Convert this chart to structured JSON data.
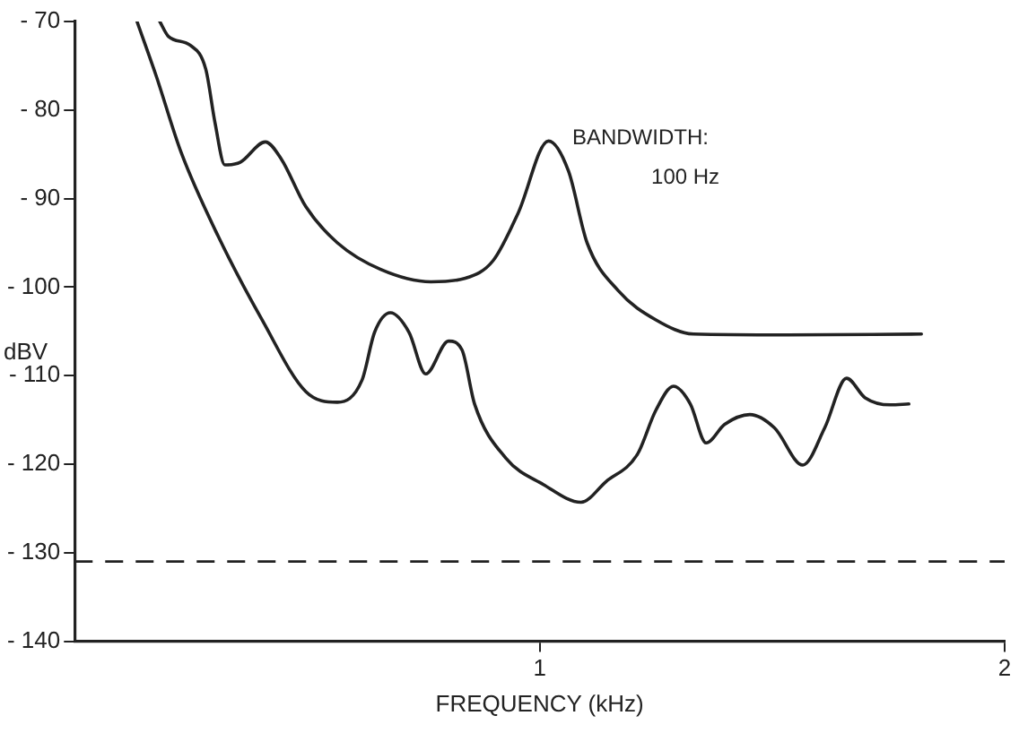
{
  "chart_data": {
    "type": "line",
    "xlabel": "FREQUENCY (kHz)",
    "ylabel": "dBV",
    "annotations": [
      "BANDWIDTH:",
      "100 Hz"
    ],
    "xlim": [
      0,
      2
    ],
    "xticks": [
      1,
      2
    ],
    "ylim": [
      -140,
      -70
    ],
    "yticks": [
      -70,
      -80,
      -90,
      -100,
      -110,
      -120,
      -130,
      -140
    ],
    "grid": false,
    "legend": false,
    "marker": "none",
    "line_style": "solid",
    "ref_lines": [
      {
        "axis": "y",
        "value": -131,
        "label": null,
        "color": "#222222",
        "line_style": "dashed"
      }
    ],
    "series": [
      {
        "color": "#222222",
        "x": [
          0.183,
          0.202,
          0.249,
          0.282,
          0.302,
          0.323,
          0.356,
          0.41,
          0.444,
          0.497,
          0.565,
          0.658,
          0.766,
          0.84,
          0.9,
          0.954,
          1.019,
          1.062,
          1.102,
          1.169,
          1.25,
          1.331,
          1.532,
          1.821
        ],
        "values": [
          -70,
          -71.7,
          -72.7,
          -75.4,
          -81.5,
          -86.2,
          -85.9,
          -83.6,
          -85.5,
          -90.9,
          -95,
          -98,
          -99.4,
          -99,
          -97,
          -91.6,
          -83.5,
          -86.9,
          -95,
          -100.4,
          -103.7,
          -105.3,
          -105.4,
          -105.3
        ]
      },
      {
        "color": "#222222",
        "x": [
          0.134,
          0.175,
          0.229,
          0.309,
          0.403,
          0.497,
          0.565,
          0.618,
          0.645,
          0.679,
          0.719,
          0.755,
          0.804,
          0.833,
          0.86,
          0.927,
          1.008,
          1.089,
          1.142,
          1.21,
          1.25,
          1.288,
          1.324,
          1.358,
          1.398,
          1.452,
          1.505,
          1.566,
          1.613,
          1.66,
          1.7,
          1.754,
          1.794
        ],
        "values": [
          -70,
          -76.1,
          -84.8,
          -94.3,
          -103.7,
          -111.8,
          -113,
          -110.5,
          -105.1,
          -102.9,
          -105.1,
          -109.8,
          -106.1,
          -107.1,
          -113.2,
          -119.3,
          -122.3,
          -124.3,
          -122,
          -118.9,
          -113.9,
          -111.2,
          -113.2,
          -117.6,
          -115.5,
          -114.4,
          -115.9,
          -120.1,
          -115.9,
          -110.3,
          -112.5,
          -113.3,
          -113.2
        ]
      }
    ]
  }
}
